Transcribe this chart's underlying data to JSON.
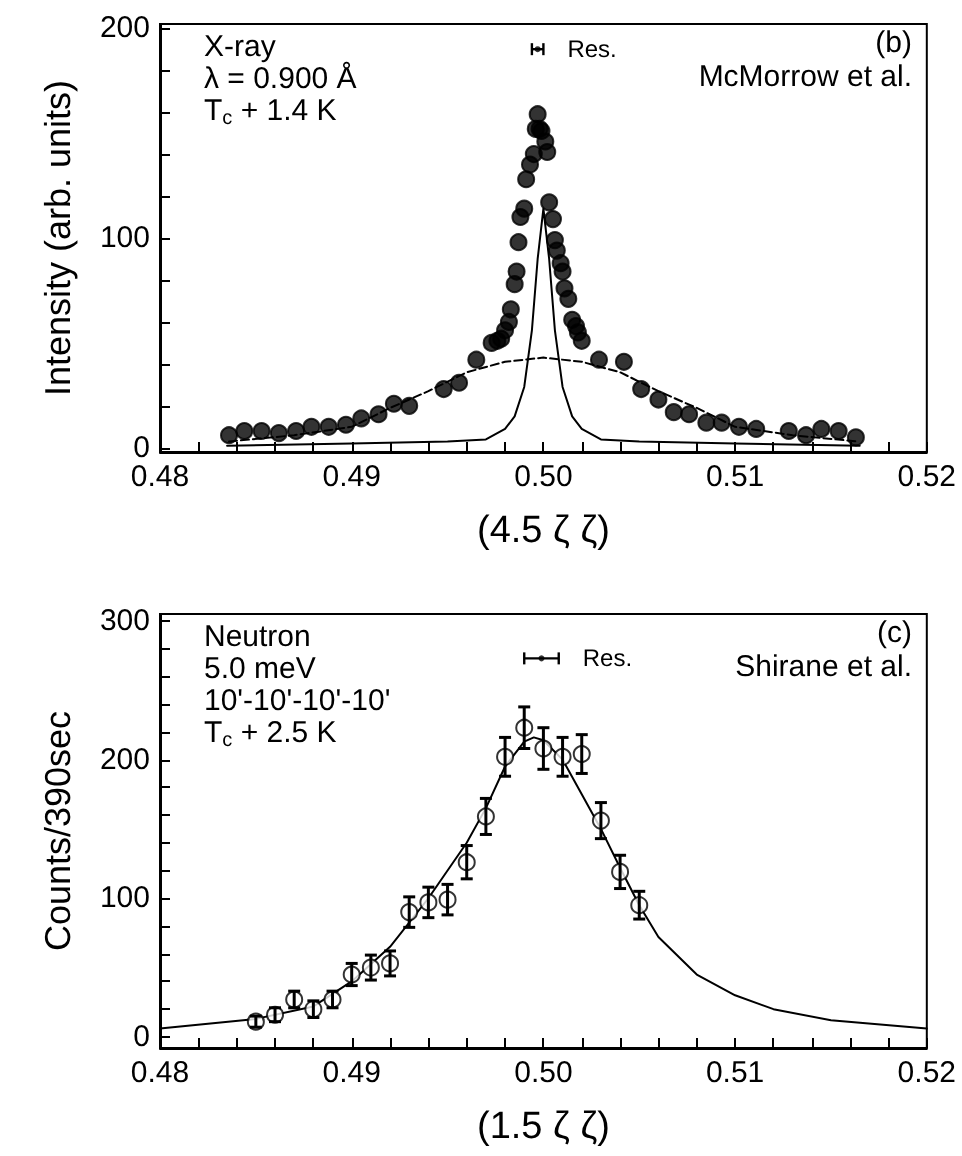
{
  "chart_data": [
    {
      "type": "scatter",
      "xlabel": "(4.5 ζ ζ)",
      "ylabel": "Intensity (arb. units)",
      "annotations": [
        "X-ray",
        "λ = 0.900 Å",
        "T$_{c}$ + 1.4 K",
        "(b)",
        "McMorrow et al."
      ],
      "xlim": [
        0.48,
        0.52
      ],
      "ylim": [
        -2,
        202
      ],
      "xticks": [
        0.48,
        {
          "value": 0.482,
          "label": null
        },
        {
          "value": 0.484,
          "label": null
        },
        {
          "value": 0.486,
          "label": null
        },
        {
          "value": 0.488,
          "label": null
        },
        0.49,
        {
          "value": 0.492,
          "label": null
        },
        {
          "value": 0.494,
          "label": null
        },
        {
          "value": 0.496,
          "label": null
        },
        {
          "value": 0.498,
          "label": null
        },
        {
          "value": 0.5,
          "label": "0.50"
        },
        {
          "value": 0.502,
          "label": null
        },
        {
          "value": 0.504,
          "label": null
        },
        {
          "value": 0.506,
          "label": null
        },
        {
          "value": 0.508,
          "label": null
        },
        0.51,
        {
          "value": 0.512,
          "label": null
        },
        {
          "value": 0.514,
          "label": null
        },
        {
          "value": 0.516,
          "label": null
        },
        {
          "value": 0.518,
          "label": null
        },
        0.52
      ],
      "yticks": [
        0,
        {
          "value": 20,
          "label": null
        },
        {
          "value": 40,
          "label": null
        },
        {
          "value": 60,
          "label": null
        },
        {
          "value": 80,
          "label": null
        },
        100,
        {
          "value": 120,
          "label": null
        },
        {
          "value": 140,
          "label": null
        },
        {
          "value": 160,
          "label": null
        },
        {
          "value": 180,
          "label": null
        },
        200
      ],
      "grid": false,
      "marker": "circle",
      "series": [
        {
          "type": "scatter",
          "color": "#000000",
          "x": [
            0.4836,
            0.4844,
            0.4853,
            0.4862,
            0.4871,
            0.4879,
            0.4888,
            0.4897,
            0.4905,
            0.4914,
            0.4922,
            0.493,
            0.4948,
            0.4956,
            0.4965,
            0.4973,
            0.4976,
            0.4978,
            0.498,
            0.4982,
            0.4983,
            0.4985,
            0.4986,
            0.4987,
            0.4988,
            0.499,
            0.4991,
            0.4993,
            0.4995,
            0.4996,
            0.4997,
            0.4998,
            0.4999,
            0.5001,
            0.5002,
            0.5003,
            0.5005,
            0.5006,
            0.5007,
            0.5009,
            0.501,
            0.5011,
            0.5013,
            0.5015,
            0.5017,
            0.5018,
            0.502,
            0.5029,
            0.5042,
            0.5051,
            0.506,
            0.5068,
            0.5076,
            0.5085,
            0.5093,
            0.5102,
            0.5111,
            0.5128,
            0.5137,
            0.5145,
            0.5154,
            0.5163
          ],
          "values": [
            6,
            8,
            8,
            7,
            8,
            10,
            10,
            11,
            14,
            16,
            21,
            20,
            28,
            31,
            42,
            50,
            51,
            52,
            56,
            60,
            66,
            78,
            84,
            98,
            110,
            114,
            128,
            135,
            140,
            152,
            159,
            152,
            151,
            146,
            141,
            117,
            109,
            99,
            94,
            88,
            84,
            76,
            71,
            61,
            58,
            55,
            51,
            42,
            41,
            28,
            23,
            17,
            16,
            12,
            12,
            10,
            9,
            8,
            6,
            9,
            8,
            5
          ]
        },
        {
          "type": "line",
          "color": "#000000",
          "marker": "none",
          "line_style": "solid",
          "x": [
            0.4835,
            0.49,
            0.495,
            0.497,
            0.498,
            0.4985,
            0.499,
            0.4994,
            0.4997,
            0.5,
            0.5003,
            0.5006,
            0.501,
            0.5015,
            0.502,
            0.503,
            0.505,
            0.51,
            0.5165
          ],
          "values": [
            1,
            2,
            3,
            4,
            9,
            15,
            29,
            56,
            90,
            114,
            90,
            56,
            29,
            15,
            9,
            4,
            3,
            2,
            1
          ]
        },
        {
          "type": "line",
          "color": "#000000",
          "marker": "none",
          "line_style": "dashed",
          "x": [
            0.4836,
            0.487,
            0.49,
            0.492,
            0.494,
            0.496,
            0.498,
            0.5,
            0.502,
            0.504,
            0.506,
            0.508,
            0.51,
            0.513,
            0.5164
          ],
          "values": [
            3,
            6,
            10,
            19,
            27,
            36,
            41,
            43,
            41,
            36,
            27,
            19,
            10,
            6,
            3
          ]
        },
        {
          "type": "scatter",
          "name": "Res.",
          "color": "#000000",
          "marker": "none",
          "x": [
            0.4997
          ],
          "values": [
            190
          ],
          "xerrors": [
            0.0003
          ]
        }
      ]
    },
    {
      "type": "scatter",
      "xlabel": "(1.5 ζ ζ)",
      "ylabel": "Counts/390sec",
      "annotations": [
        "Neutron",
        "5.0 meV",
        "10'-10'-10'-10'",
        "T$_{c}$ + 2.5 K",
        "(c)",
        "Shirane et al."
      ],
      "xlim": [
        0.48,
        0.52
      ],
      "ylim": [
        -8,
        305
      ],
      "xticks": [
        0.48,
        {
          "value": 0.482,
          "label": null
        },
        {
          "value": 0.484,
          "label": null
        },
        {
          "value": 0.486,
          "label": null
        },
        {
          "value": 0.488,
          "label": null
        },
        0.49,
        {
          "value": 0.492,
          "label": null
        },
        {
          "value": 0.494,
          "label": null
        },
        {
          "value": 0.496,
          "label": null
        },
        {
          "value": 0.498,
          "label": null
        },
        {
          "value": 0.5,
          "label": "0.50"
        },
        {
          "value": 0.502,
          "label": null
        },
        {
          "value": 0.504,
          "label": null
        },
        {
          "value": 0.506,
          "label": null
        },
        {
          "value": 0.508,
          "label": null
        },
        0.51,
        {
          "value": 0.512,
          "label": null
        },
        {
          "value": 0.514,
          "label": null
        },
        {
          "value": 0.516,
          "label": null
        },
        {
          "value": 0.518,
          "label": null
        },
        0.52
      ],
      "yticks": [
        0,
        {
          "value": 20,
          "label": null
        },
        {
          "value": 40,
          "label": null
        },
        {
          "value": 60,
          "label": null
        },
        {
          "value": 80,
          "label": null
        },
        100,
        {
          "value": 120,
          "label": null
        },
        {
          "value": 140,
          "label": null
        },
        {
          "value": 160,
          "label": null
        },
        {
          "value": 180,
          "label": null
        },
        200,
        {
          "value": 220,
          "label": null
        },
        {
          "value": 240,
          "label": null
        },
        {
          "value": 260,
          "label": null
        },
        {
          "value": 280,
          "label": null
        },
        300
      ],
      "grid": false,
      "marker": "circle",
      "series": [
        {
          "type": "scatter",
          "color": "#ffffff",
          "x": [
            0.485,
            0.486,
            0.487,
            0.488,
            0.489,
            0.49,
            0.491,
            0.492,
            0.493,
            0.494,
            0.495,
            0.496,
            0.497,
            0.498,
            0.499,
            0.5,
            0.501,
            0.502,
            0.503,
            0.504,
            0.505
          ],
          "values": [
            11,
            16,
            27,
            20,
            27,
            45,
            50,
            53,
            90,
            97,
            99,
            126,
            159,
            202,
            223,
            208,
            202,
            204,
            156,
            119,
            95
          ],
          "errors": [
            4,
            5,
            6,
            6,
            6,
            8,
            9,
            9,
            11,
            11,
            11,
            12,
            13,
            14,
            15,
            15,
            14,
            14,
            13,
            12,
            10
          ]
        },
        {
          "type": "line",
          "color": "#000000",
          "marker": "none",
          "line_style": "solid",
          "x": [
            0.48,
            0.485,
            0.488,
            0.49,
            0.492,
            0.494,
            0.496,
            0.497,
            0.498,
            0.499,
            0.4995,
            0.5,
            0.501,
            0.502,
            0.503,
            0.504,
            0.505,
            0.506,
            0.508,
            0.51,
            0.512,
            0.515,
            0.52
          ],
          "values": [
            6,
            13,
            22,
            40,
            65,
            100,
            140,
            165,
            195,
            213,
            216,
            214,
            200,
            175,
            150,
            122,
            95,
            72,
            45,
            30,
            20,
            12,
            6
          ]
        },
        {
          "type": "scatter",
          "name": "Res.",
          "color": "#000000",
          "marker": "none",
          "x": [
            0.4999
          ],
          "values": [
            273
          ],
          "xerrors": [
            0.0009
          ]
        }
      ]
    }
  ]
}
